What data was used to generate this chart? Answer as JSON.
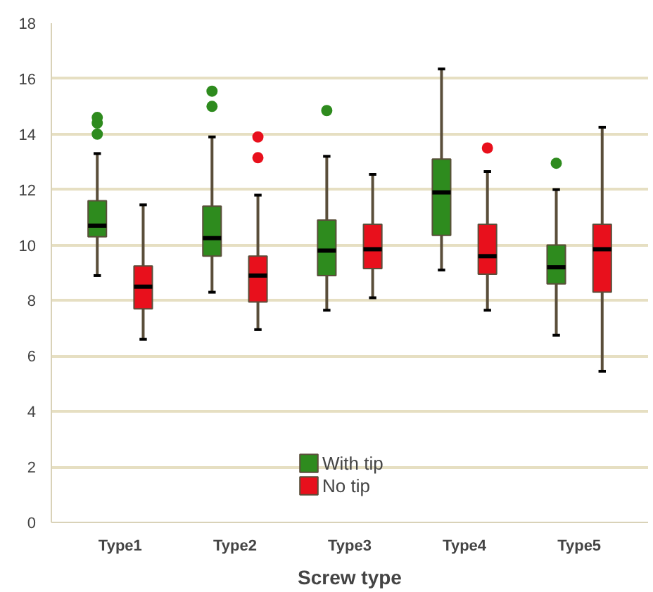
{
  "chart_data": {
    "type": "box",
    "xlabel": "Screw type",
    "categories": [
      "Type1",
      "Type2",
      "Type3",
      "Type4",
      "Type5"
    ],
    "ylim": [
      0,
      18
    ],
    "yticks": [
      0,
      2,
      4,
      6,
      8,
      10,
      12,
      14,
      16,
      18
    ],
    "grid": "y",
    "legend": "bottom",
    "series": [
      {
        "name": "With tip",
        "color": "#2e8b1e",
        "boxes": [
          {
            "low": 8.9,
            "q1": 10.3,
            "median": 10.7,
            "q3": 11.6,
            "high": 13.3,
            "outliers": [
              14.0,
              14.4,
              14.6
            ]
          },
          {
            "low": 8.3,
            "q1": 9.6,
            "median": 10.25,
            "q3": 11.4,
            "high": 13.9,
            "outliers": [
              15.0,
              15.55
            ]
          },
          {
            "low": 7.65,
            "q1": 8.9,
            "median": 9.8,
            "q3": 10.9,
            "high": 13.2,
            "outliers": [
              14.85
            ]
          },
          {
            "low": 9.1,
            "q1": 10.35,
            "median": 11.9,
            "q3": 13.1,
            "high": 16.35
          },
          {
            "low": 6.75,
            "q1": 8.6,
            "median": 9.2,
            "q3": 10.0,
            "high": 12.0,
            "outliers": [
              12.95
            ]
          }
        ]
      },
      {
        "name": "No tip",
        "color": "#e8101c",
        "boxes": [
          {
            "low": 6.6,
            "q1": 7.7,
            "median": 8.5,
            "q3": 9.25,
            "high": 11.45
          },
          {
            "low": 6.95,
            "q1": 7.95,
            "median": 8.9,
            "q3": 9.6,
            "high": 11.8,
            "outliers": [
              13.15,
              13.9
            ]
          },
          {
            "low": 8.1,
            "q1": 9.15,
            "median": 9.85,
            "q3": 10.75,
            "high": 12.55
          },
          {
            "low": 7.65,
            "q1": 8.95,
            "median": 9.6,
            "q3": 10.75,
            "high": 12.65,
            "outliers": [
              13.5
            ]
          },
          {
            "low": 5.45,
            "q1": 8.3,
            "median": 9.85,
            "q3": 10.75,
            "high": 14.25
          }
        ]
      }
    ]
  }
}
